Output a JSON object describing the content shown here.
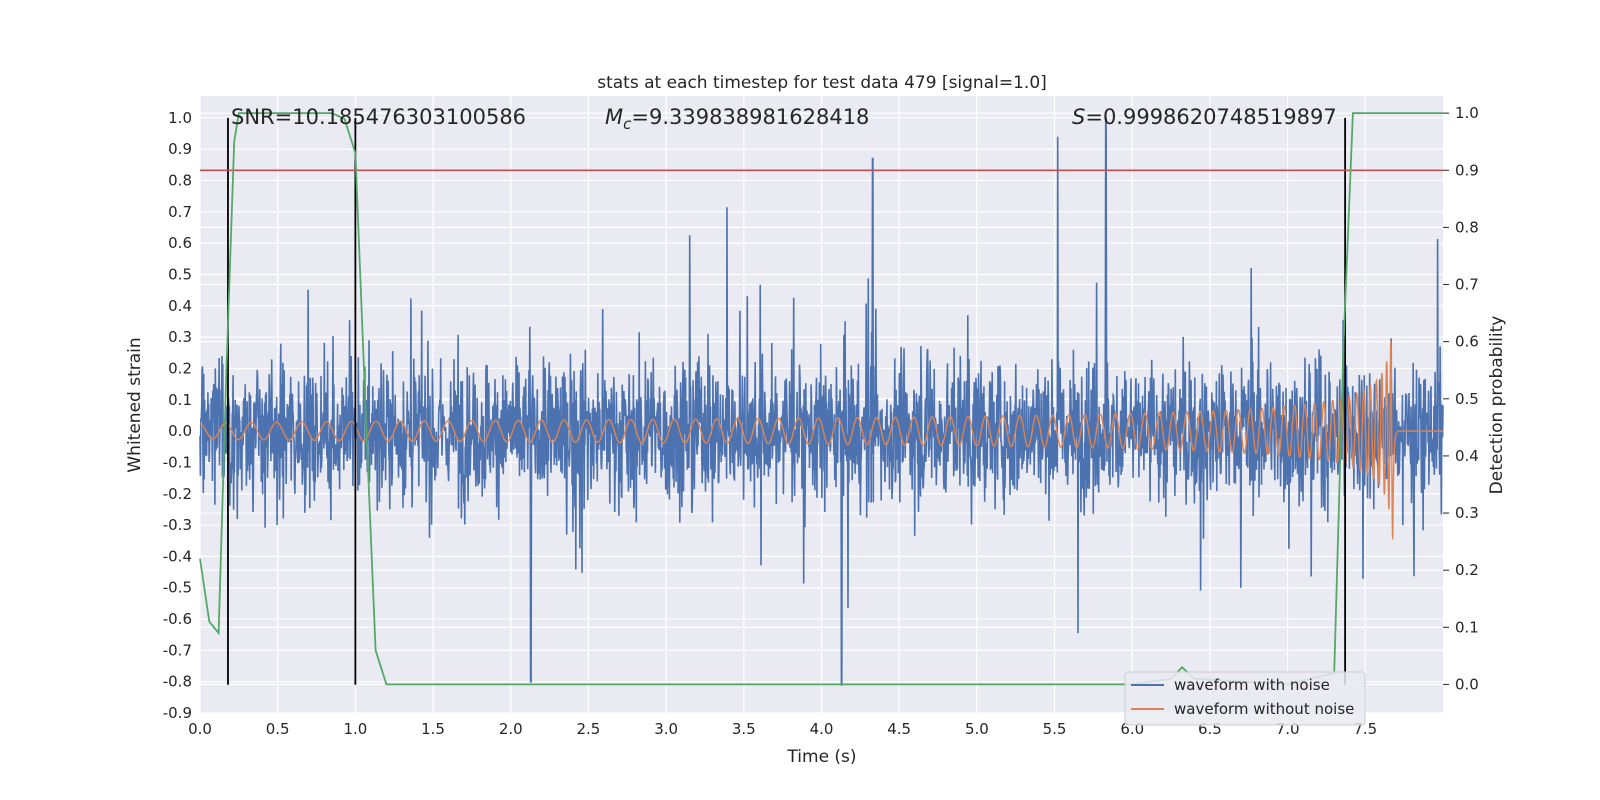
{
  "chart_data": {
    "type": "line",
    "title": "stats at each timestep for test data 479 [signal=1.0]",
    "xlabel": "Time (s)",
    "ylabel": "Whitened strain",
    "y2label": "Detection probability",
    "xlim": [
      0,
      8
    ],
    "ylim": [
      -0.9,
      1.07
    ],
    "y2lim": [
      -0.05,
      1.03
    ],
    "x_ticks": [
      "0.0",
      "0.5",
      "1.0",
      "1.5",
      "2.0",
      "2.5",
      "3.0",
      "3.5",
      "4.0",
      "4.5",
      "5.0",
      "5.5",
      "6.0",
      "6.5",
      "7.0",
      "7.5"
    ],
    "y_ticks": [
      "-0.9",
      "-0.8",
      "-0.7",
      "-0.6",
      "-0.5",
      "-0.4",
      "-0.3",
      "-0.2",
      "-0.1",
      "0.0",
      "0.1",
      "0.2",
      "0.3",
      "0.4",
      "0.5",
      "0.6",
      "0.7",
      "0.8",
      "0.9",
      "1.0"
    ],
    "y2_ticks": [
      "0.0",
      "0.1",
      "0.2",
      "0.3",
      "0.4",
      "0.5",
      "0.6",
      "0.7",
      "0.8",
      "0.9",
      "1.0"
    ],
    "grid": true,
    "legend": "lower-right",
    "annotations": {
      "snr": "SNR=10.185476303100586",
      "mc_symbol": "M",
      "mc_sub": "c",
      "mc_value": "=9.339838981628418",
      "s_symbol": "S",
      "s_value": "=0.9998620748519897"
    },
    "threshold_y2": 0.9,
    "vertical_lines_x": [
      0.18,
      1.0,
      7.37
    ],
    "vertical_lines_ylim": [
      -0.81,
      1.0
    ],
    "series": [
      {
        "name": "waveform with noise",
        "color": "#4c72b0",
        "noise_envelope": "dense noise roughly within ±0.45 with spikes to 1.0 near x=5.83 and -0.81 near x=4.13"
      },
      {
        "name": "waveform without noise",
        "color": "#dd8452",
        "chirp": "sinusoid rising in amplitude from 0.02 near x=0 to 0.38 at the merger near x=7.68, then 0 after"
      },
      {
        "color": "#55a868",
        "axis": "y2",
        "x": [
          0.0,
          0.06,
          0.12,
          0.17,
          0.22,
          0.25,
          0.3,
          0.5,
          0.7,
          0.85,
          0.93,
          1.0,
          1.07,
          1.13,
          1.2,
          1.3,
          6.0,
          6.25,
          6.32,
          6.4,
          7.0,
          7.3,
          7.36,
          7.42,
          7.5,
          8.0
        ],
        "y": [
          0.22,
          0.11,
          0.09,
          0.55,
          0.95,
          1.0,
          1.0,
          1.0,
          1.0,
          1.0,
          0.99,
          0.93,
          0.45,
          0.06,
          0.0,
          0.0,
          0.0,
          0.01,
          0.03,
          0.01,
          0.0,
          0.02,
          0.6,
          1.0,
          1.0,
          1.0
        ]
      },
      {
        "color": "#c44e52",
        "axis": "y2",
        "type": "hline",
        "y": 0.9
      }
    ]
  }
}
